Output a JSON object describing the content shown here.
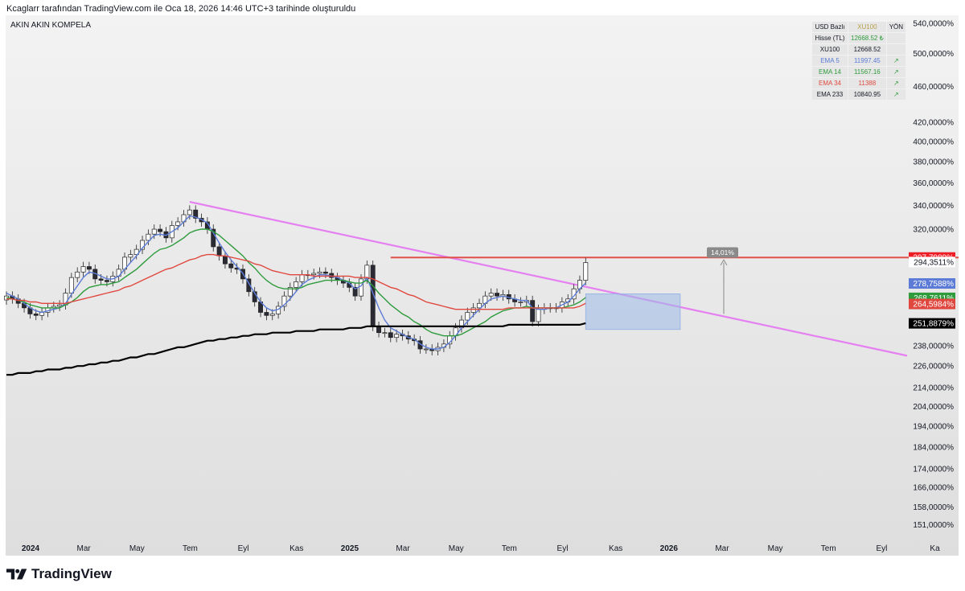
{
  "caption": "Kcaglarr tarafından TradingView.com ile Oca 18, 2026 14:46 UTC+3 tarihinde oluşturuldu",
  "brand": "TradingView",
  "colors": {
    "background_top": "#f3f3f3",
    "background_bottom": "#dedede",
    "ema5": "#5b7bd6",
    "ema14": "#2e9b3c",
    "ema34": "#e0483f",
    "ema233": "#000000",
    "trendline": "#e580f0",
    "resistance": "#e0504a",
    "box": "#9db9e8",
    "arrow_up": "#2e9b3c"
  },
  "info_table": {
    "header": [
      "USD Bazlı",
      "XU100",
      "YÖN"
    ],
    "rows": [
      {
        "name": "Hisse (TL)",
        "value": "12668.52 ₺",
        "dir": "",
        "color": "#2e9b3c"
      },
      {
        "name": "XU100",
        "value": "12668.52",
        "dir": "",
        "color": "#131722"
      },
      {
        "name": "EMA 5",
        "value": "11997.45",
        "dir": "↗",
        "color": "#5b7bd6"
      },
      {
        "name": "EMA 14",
        "value": "11567.16",
        "dir": "↗",
        "color": "#2e9b3c"
      },
      {
        "name": "EMA 34",
        "value": "11388",
        "dir": "↗",
        "color": "#e0483f"
      },
      {
        "name": "EMA 233",
        "value": "10840.95",
        "dir": "↗",
        "color": "#131722"
      }
    ]
  },
  "chart_data": {
    "type": "line",
    "title": "AKIN AKIN KOMPELA",
    "y_scale": "log",
    "ylim": [
      146,
      560
    ],
    "y_ticks": [
      540,
      500,
      460,
      420,
      400,
      380,
      360,
      340,
      320,
      238,
      226,
      214,
      204,
      194,
      184,
      174,
      166,
      158,
      151
    ],
    "y_tick_suffix": "%",
    "x_labels": [
      "2024",
      "Mar",
      "May",
      "Tem",
      "Eyl",
      "Kas",
      "2025",
      "Mar",
      "May",
      "Tem",
      "Eyl",
      "Kas",
      "2026",
      "Mar",
      "May",
      "Tem",
      "Eyl",
      "Ka"
    ],
    "x_labels_bold": [
      "2024",
      "2025",
      "2026"
    ],
    "weeks_from_start": [
      0,
      9,
      18,
      27,
      36,
      45,
      54,
      63,
      72,
      81,
      90,
      99,
      108,
      117,
      126,
      135,
      144,
      153
    ],
    "price_labels": [
      {
        "text": "297,7989%",
        "value": 297.7989,
        "color": "#ee1c25"
      },
      {
        "text": "294,3511%",
        "value": 294.3511,
        "color": "#ffffff"
      },
      {
        "text": "278,7588%",
        "value": 278.7588,
        "color": "#5b7bd6"
      },
      {
        "text": "268,7611%",
        "value": 268.7611,
        "color": "#2e9b3c"
      },
      {
        "text": "264,5984%",
        "value": 264.5984,
        "color": "#e0483f"
      },
      {
        "text": "251,8879%",
        "value": 251.8879,
        "color": "#000000"
      }
    ],
    "measure_label": "14,01%",
    "series": [
      {
        "key": "close",
        "values": [
          270,
          268,
          265,
          262,
          258,
          257,
          259,
          262,
          263,
          264,
          272,
          283,
          287,
          291,
          289,
          282,
          281,
          280,
          284,
          289,
          298,
          300,
          304,
          311,
          316,
          320,
          318,
          313,
          323,
          326,
          332,
          336,
          329,
          326,
          320,
          306,
          299,
          293,
          290,
          289,
          282,
          273,
          266,
          259,
          257,
          258,
          263,
          270,
          276,
          280,
          285,
          285,
          286,
          287,
          286,
          283,
          281,
          279,
          276,
          270,
          282,
          292,
          250,
          246,
          246,
          243,
          245,
          244,
          242,
          241,
          236,
          236,
          235,
          237,
          239,
          244,
          249,
          254,
          259,
          262,
          265,
          270,
          272,
          270,
          271,
          268,
          266,
          266,
          267,
          253,
          261,
          262,
          262,
          262,
          266,
          268,
          275,
          281,
          294
        ]
      },
      {
        "key": "ema5",
        "color": "#5b7bd6",
        "values": [
          272,
          270,
          268,
          265,
          262,
          260,
          259,
          260,
          261,
          262,
          265,
          271,
          277,
          283,
          287,
          286,
          284,
          282,
          282,
          284,
          289,
          294,
          299,
          305,
          310,
          315,
          316,
          315,
          318,
          321,
          326,
          331,
          330,
          328,
          325,
          317,
          309,
          302,
          296,
          291,
          286,
          279,
          272,
          266,
          262,
          260,
          261,
          264,
          268,
          273,
          278,
          281,
          283,
          285,
          285,
          284,
          283,
          281,
          279,
          275,
          277,
          283,
          272,
          262,
          254,
          249,
          247,
          245,
          243,
          242,
          239,
          237,
          236,
          236,
          237,
          240,
          244,
          249,
          253,
          257,
          261,
          265,
          268,
          269,
          270,
          269,
          268,
          267,
          267,
          262,
          261,
          261,
          262,
          262,
          264,
          266,
          270,
          275,
          279
        ]
      },
      {
        "key": "ema14",
        "color": "#2e9b3c",
        "values": [
          269,
          268,
          267,
          266,
          264,
          263,
          262,
          262,
          262,
          262,
          264,
          266,
          269,
          273,
          276,
          277,
          278,
          278,
          279,
          280,
          283,
          286,
          289,
          293,
          297,
          301,
          304,
          305,
          307,
          310,
          313,
          317,
          319,
          320,
          320,
          318,
          315,
          311,
          307,
          303,
          299,
          294,
          290,
          285,
          281,
          278,
          276,
          275,
          275,
          275,
          276,
          278,
          279,
          280,
          281,
          281,
          281,
          281,
          280,
          279,
          279,
          281,
          277,
          272,
          268,
          264,
          261,
          258,
          256,
          253,
          251,
          248,
          246,
          245,
          244,
          244,
          244,
          245,
          247,
          249,
          251,
          253,
          256,
          258,
          260,
          261,
          262,
          262,
          263,
          262,
          262,
          262,
          262,
          262,
          262,
          263,
          264,
          266,
          269
        ]
      },
      {
        "key": "ema34",
        "color": "#e0483f",
        "values": [
          268,
          268,
          267,
          267,
          266,
          266,
          265,
          265,
          265,
          265,
          265,
          266,
          267,
          268,
          269,
          270,
          271,
          272,
          273,
          274,
          276,
          277,
          279,
          281,
          283,
          285,
          287,
          289,
          290,
          292,
          294,
          296,
          297,
          299,
          300,
          300,
          299,
          299,
          298,
          297,
          296,
          295,
          293,
          292,
          290,
          288,
          287,
          286,
          285,
          285,
          285,
          285,
          284,
          284,
          284,
          284,
          284,
          284,
          284,
          283,
          283,
          283,
          282,
          280,
          278,
          276,
          275,
          273,
          271,
          270,
          268,
          266,
          265,
          264,
          263,
          262,
          261,
          261,
          261,
          261,
          261,
          261,
          261,
          261,
          261,
          262,
          262,
          262,
          262,
          262,
          262,
          262,
          262,
          262,
          262,
          262,
          262,
          263,
          265
        ]
      },
      {
        "key": "ema233",
        "color": "#000000",
        "values": [
          221,
          221,
          222,
          222,
          222,
          223,
          223,
          224,
          224,
          224,
          225,
          225,
          226,
          226,
          227,
          227,
          228,
          228,
          229,
          229,
          230,
          231,
          231,
          232,
          233,
          233,
          234,
          235,
          236,
          237,
          237,
          238,
          239,
          240,
          241,
          241,
          242,
          242,
          243,
          243,
          244,
          244,
          245,
          245,
          245,
          246,
          246,
          246,
          246,
          247,
          247,
          247,
          247,
          248,
          248,
          248,
          248,
          248,
          249,
          249,
          249,
          250,
          250,
          250,
          250,
          250,
          250,
          250,
          250,
          250,
          250,
          250,
          250,
          250,
          250,
          250,
          250,
          250,
          250,
          250,
          250,
          250,
          250,
          250,
          250,
          251,
          251,
          251,
          251,
          251,
          251,
          251,
          251,
          251,
          251,
          251,
          251,
          251,
          252
        ]
      }
    ]
  }
}
